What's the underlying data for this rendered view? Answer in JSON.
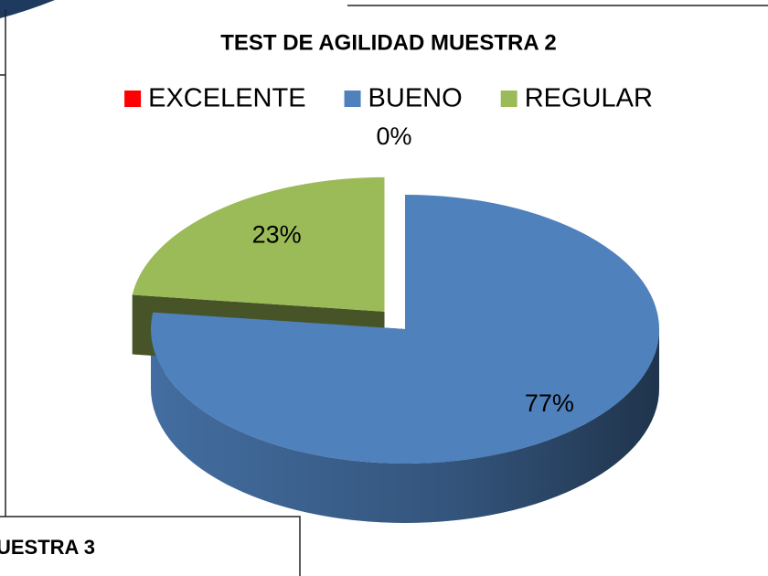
{
  "caption_fragment": "UESTRA 3",
  "chart_data": {
    "type": "pie",
    "title": "TEST DE AGILIDAD MUESTRA 2",
    "categories": [
      "EXCELENTE",
      "BUENO",
      "REGULAR"
    ],
    "values": [
      0,
      77,
      23
    ],
    "value_labels": [
      "0%",
      "77%",
      "23%"
    ],
    "colors": [
      "#ff0000",
      "#4f81bd",
      "#9bbb59"
    ],
    "legend": "top"
  }
}
